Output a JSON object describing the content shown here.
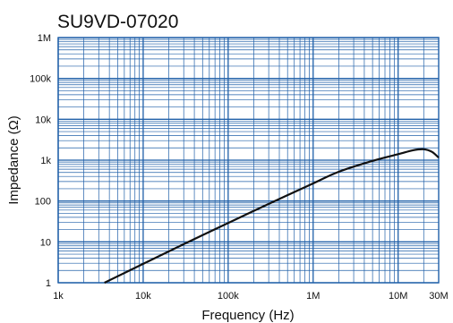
{
  "chart_data": {
    "type": "line",
    "title": "SU9VD-07020",
    "xlabel": "Frequency (Hz)",
    "ylabel": "Impedance (Ω)",
    "x_scale": "log",
    "y_scale": "log",
    "xlim": [
      1000,
      30000000
    ],
    "ylim": [
      1,
      1000000
    ],
    "x_ticks": [
      {
        "value": 1000,
        "label": "1k"
      },
      {
        "value": 10000,
        "label": "10k"
      },
      {
        "value": 100000,
        "label": "100k"
      },
      {
        "value": 1000000,
        "label": "1M"
      },
      {
        "value": 10000000,
        "label": "10M"
      },
      {
        "value": 30000000,
        "label": "30M"
      }
    ],
    "y_ticks": [
      {
        "value": 1,
        "label": "1"
      },
      {
        "value": 10,
        "label": "10"
      },
      {
        "value": 100,
        "label": "100"
      },
      {
        "value": 1000,
        "label": "1k"
      },
      {
        "value": 10000,
        "label": "10k"
      },
      {
        "value": 100000,
        "label": "100k"
      },
      {
        "value": 1000000,
        "label": "1M"
      }
    ],
    "grid": true,
    "grid_color": "#1f5fa8",
    "line_color": "#111111",
    "series": [
      {
        "x": [
          3500,
          10000,
          30000,
          100000,
          300000,
          1000000,
          2000000,
          5000000,
          10000000,
          15000000,
          20000000,
          25000000,
          30000000
        ],
        "y": [
          1,
          2.9,
          8.8,
          29,
          85,
          270,
          520,
          960,
          1400,
          1750,
          1850,
          1600,
          1150
        ]
      }
    ]
  }
}
